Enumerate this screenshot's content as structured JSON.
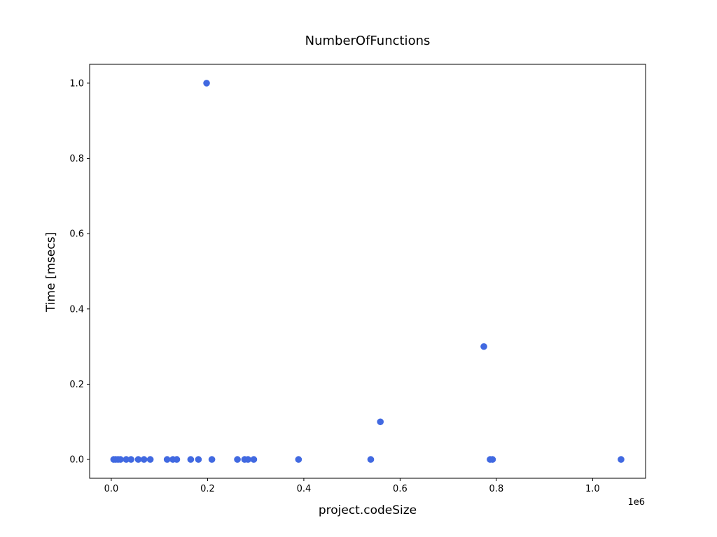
{
  "chart_data": {
    "type": "scatter",
    "title": "NumberOfFunctions",
    "xlabel": "project.codeSize",
    "ylabel": "Time [msecs]",
    "x_offset_label": "1e6",
    "xlim": [
      -45000,
      1110000
    ],
    "ylim": [
      -0.05,
      1.05
    ],
    "xticks": [
      0.0,
      0.2,
      0.4,
      0.6,
      0.8,
      1.0
    ],
    "xtick_labels": [
      "0.0",
      "0.2",
      "0.4",
      "0.6",
      "0.8",
      "1.0"
    ],
    "xtick_scale": 1000000,
    "yticks": [
      0.0,
      0.2,
      0.4,
      0.6,
      0.8,
      1.0
    ],
    "ytick_labels": [
      "0.0",
      "0.2",
      "0.4",
      "0.6",
      "0.8",
      "1.0"
    ],
    "grid": false,
    "marker_color": "#4169e1",
    "points": [
      {
        "x": 5000,
        "y": 0.0
      },
      {
        "x": 9000,
        "y": 0.0
      },
      {
        "x": 14000,
        "y": 0.0
      },
      {
        "x": 19000,
        "y": 0.0
      },
      {
        "x": 31000,
        "y": 0.0
      },
      {
        "x": 41000,
        "y": 0.0
      },
      {
        "x": 56000,
        "y": 0.0
      },
      {
        "x": 68000,
        "y": 0.0
      },
      {
        "x": 81000,
        "y": 0.0
      },
      {
        "x": 116000,
        "y": 0.0
      },
      {
        "x": 128000,
        "y": 0.0
      },
      {
        "x": 136000,
        "y": 0.0
      },
      {
        "x": 165000,
        "y": 0.0
      },
      {
        "x": 181000,
        "y": 0.0
      },
      {
        "x": 198000,
        "y": 1.0
      },
      {
        "x": 209000,
        "y": 0.0
      },
      {
        "x": 262000,
        "y": 0.0
      },
      {
        "x": 277000,
        "y": 0.0
      },
      {
        "x": 284000,
        "y": 0.0
      },
      {
        "x": 296000,
        "y": 0.0
      },
      {
        "x": 389000,
        "y": 0.0
      },
      {
        "x": 539000,
        "y": 0.0
      },
      {
        "x": 559000,
        "y": 0.1
      },
      {
        "x": 774000,
        "y": 0.3
      },
      {
        "x": 787000,
        "y": 0.0
      },
      {
        "x": 792000,
        "y": 0.0
      },
      {
        "x": 1059000,
        "y": 0.0
      }
    ]
  }
}
